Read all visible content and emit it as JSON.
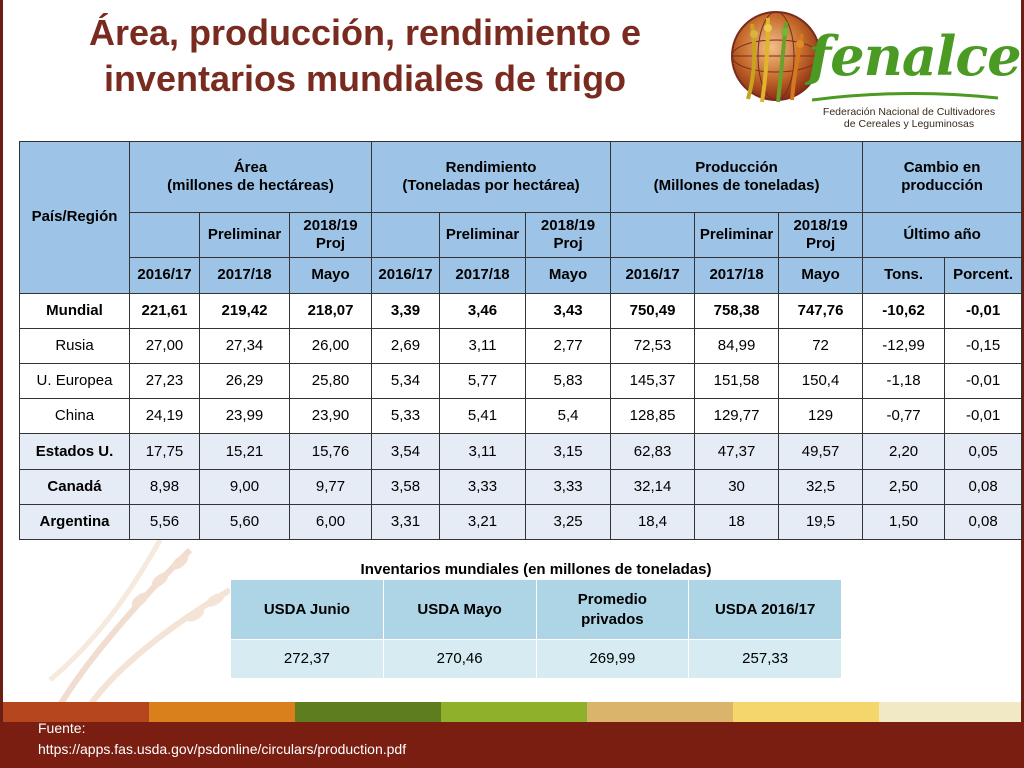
{
  "title": {
    "line1": "Área, producción, rendimiento e",
    "line2": "inventarios mundiales de trigo"
  },
  "logo": {
    "icon": "globe-wheat-icon",
    "word": "fenalce",
    "subtitle_line1": "Federación Nacional de Cultivadores",
    "subtitle_line2": "de Cereales y Leguminosas"
  },
  "main_table": {
    "region_header": "País/Región",
    "groups": [
      {
        "line1": "Área",
        "line2": "(millones de hectáreas)"
      },
      {
        "line1": "Rendimiento",
        "line2": "(Toneladas por hectárea)"
      },
      {
        "line1": "Producción",
        "line2": "(Millones de toneladas)"
      },
      {
        "line1": "Cambio en",
        "line2": "producción"
      }
    ],
    "sub": {
      "preliminar": "Preliminar",
      "proj_line1": "2018/19",
      "proj_line2": "Proj",
      "ultimo": "Último año"
    },
    "years": [
      "2016/17",
      "2017/18",
      "Mayo",
      "2016/17",
      "2017/18",
      "Mayo",
      "2016/17",
      "2017/18",
      "Mayo",
      "Tons.",
      "Porcent."
    ],
    "rows": [
      {
        "name": "Mundial",
        "values": [
          "221,61",
          "219,42",
          "218,07",
          "3,39",
          "3,46",
          "3,43",
          "750,49",
          "758,38",
          "747,76",
          "-10,62",
          "-0,01"
        ]
      },
      {
        "name": "Rusia",
        "values": [
          "27,00",
          "27,34",
          "26,00",
          "2,69",
          "3,11",
          "2,77",
          "72,53",
          "84,99",
          "72",
          "-12,99",
          "-0,15"
        ]
      },
      {
        "name": "U. Europea",
        "values": [
          "27,23",
          "26,29",
          "25,80",
          "5,34",
          "5,77",
          "5,83",
          "145,37",
          "151,58",
          "150,4",
          "-1,18",
          "-0,01"
        ]
      },
      {
        "name": "China",
        "values": [
          "24,19",
          "23,99",
          "23,90",
          "5,33",
          "5,41",
          "5,4",
          "128,85",
          "129,77",
          "129",
          "-0,77",
          "-0,01"
        ]
      },
      {
        "name": "Estados U.",
        "values": [
          "17,75",
          "15,21",
          "15,76",
          "3,54",
          "3,11",
          "3,15",
          "62,83",
          "47,37",
          "49,57",
          "2,20",
          "0,05"
        ]
      },
      {
        "name": "Canadá",
        "values": [
          "8,98",
          "9,00",
          "9,77",
          "3,58",
          "3,33",
          "3,33",
          "32,14",
          "30",
          "32,5",
          "2,50",
          "0,08"
        ]
      },
      {
        "name": "Argentina",
        "values": [
          "5,56",
          "5,60",
          "6,00",
          "3,31",
          "3,21",
          "3,25",
          "18,4",
          "18",
          "19,5",
          "1,50",
          "0,08"
        ]
      }
    ]
  },
  "inventory": {
    "caption": "Inventarios mundiales (en millones de toneladas)",
    "headers": [
      {
        "line1": "USDA Junio",
        "line2": ""
      },
      {
        "line1": "USDA Mayo",
        "line2": ""
      },
      {
        "line1": "Promedio",
        "line2": "privados"
      },
      {
        "line1": "USDA 2016/17",
        "line2": ""
      }
    ],
    "values": [
      "272,37",
      "270,46",
      "269,99",
      "257,33"
    ]
  },
  "footer": {
    "source_label": "Fuente:",
    "source_url": "https://apps.fas.usda.gov/psdonline/circulars/production.pdf",
    "stripe_colors": [
      "#b5461e",
      "#d9801c",
      "#5e7d1f",
      "#8fb02a",
      "#d9b46a",
      "#f5d66b",
      "#f1e8c6"
    ]
  }
}
